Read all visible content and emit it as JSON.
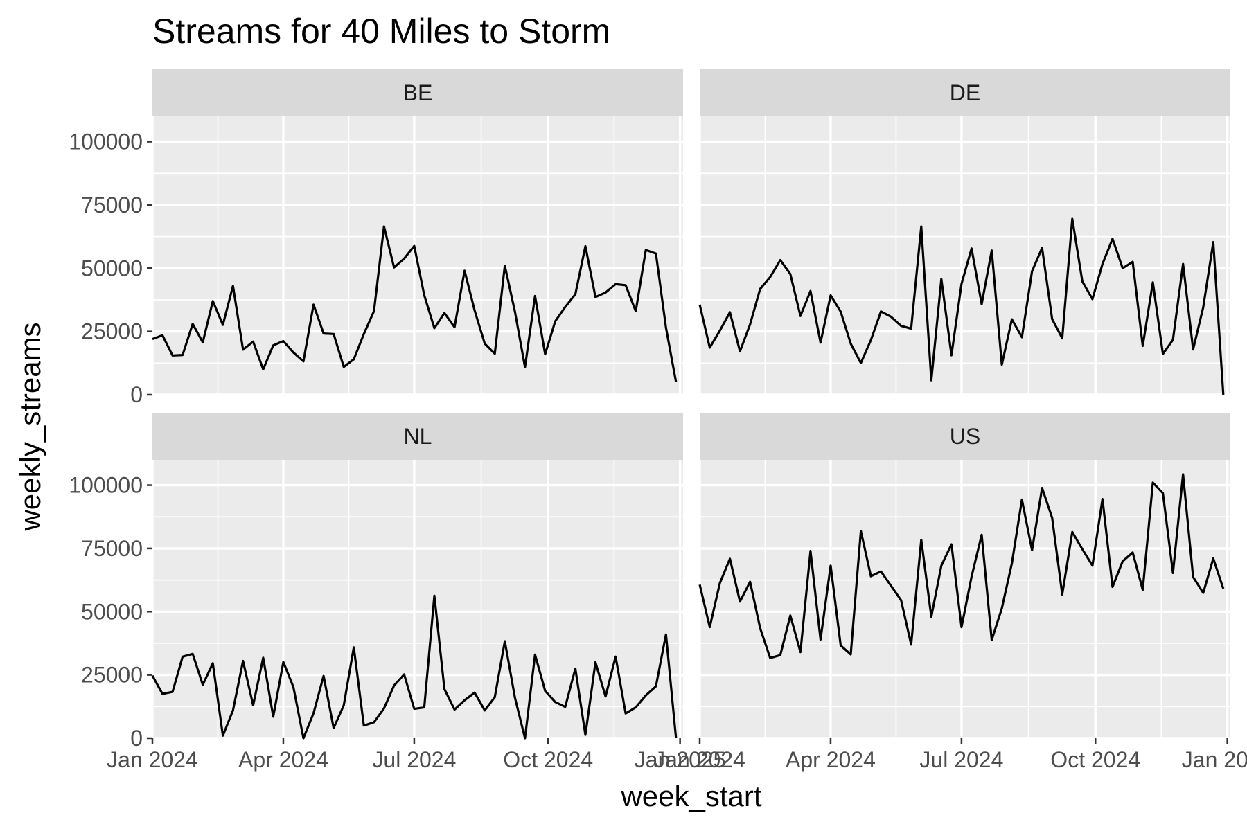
{
  "chart_data": {
    "type": "line",
    "title": "Streams for 40 Miles to Storm",
    "xlabel": "week_start",
    "ylabel": "weekly_streams",
    "ylim": [
      0,
      110000
    ],
    "xlim": [
      0,
      52.7
    ],
    "x_unit": "weeks since 2024-01-01",
    "y_ticks": [
      0,
      25000,
      50000,
      75000,
      100000
    ],
    "y_tick_labels": [
      "0",
      "25000",
      "50000",
      "75000",
      "100000"
    ],
    "x_ticks": [
      0,
      13,
      26,
      39.3,
      52.4
    ],
    "x_tick_labels": [
      "Jan 2024",
      "Apr 2024",
      "Jul 2024",
      "Oct 2024",
      "Jan 2025"
    ],
    "facets": [
      "BE",
      "DE",
      "NL",
      "US"
    ],
    "series": [
      {
        "name": "BE",
        "values": [
          22000,
          23500,
          15500,
          15700,
          28000,
          20700,
          37000,
          27600,
          43000,
          17800,
          21000,
          10000,
          19500,
          21200,
          16700,
          13200,
          35600,
          24200,
          24000,
          11000,
          14000,
          24000,
          33000,
          66500,
          50300,
          53800,
          58800,
          39300,
          26300,
          32300,
          26700,
          49000,
          33300,
          20200,
          16200,
          51000,
          32800,
          10900,
          39000,
          16000,
          29000,
          34700,
          39700,
          58700,
          38600,
          40400,
          43700,
          43300,
          33000,
          57200,
          55800,
          26500,
          5000
        ]
      },
      {
        "name": "DE",
        "values": [
          35600,
          18600,
          25300,
          32600,
          17100,
          27800,
          41800,
          46500,
          53200,
          47700,
          31100,
          41000,
          20600,
          39300,
          32800,
          20200,
          12500,
          21600,
          32900,
          30800,
          27200,
          26100,
          66500,
          5700,
          45700,
          15600,
          43800,
          57800,
          35800,
          57000,
          11900,
          29800,
          22700,
          48800,
          58000,
          29900,
          22300,
          69500,
          44800,
          37800,
          51700,
          61600,
          50000,
          52500,
          19300,
          44400,
          16100,
          21700,
          51700,
          17900,
          34500,
          60300,
          0
        ]
      },
      {
        "name": "NL",
        "values": [
          24700,
          17500,
          18300,
          32200,
          33300,
          21100,
          29600,
          1000,
          11000,
          30500,
          13000,
          31800,
          8500,
          30100,
          20200,
          0,
          9900,
          24600,
          4000,
          13000,
          35900,
          5000,
          6300,
          11800,
          20800,
          25200,
          11600,
          12200,
          56300,
          19400,
          11300,
          15000,
          18000,
          11000,
          16200,
          38300,
          16000,
          0,
          33000,
          18700,
          14300,
          12400,
          27500,
          1300,
          30000,
          16500,
          32200,
          9800,
          12200,
          16900,
          20500,
          41000,
          0
        ]
      },
      {
        "name": "US",
        "values": [
          60700,
          43900,
          61300,
          70900,
          54000,
          61800,
          43500,
          31700,
          32800,
          48500,
          34000,
          74000,
          39000,
          68200,
          36600,
          33100,
          81900,
          64000,
          65900,
          60200,
          54500,
          37000,
          78400,
          48000,
          68200,
          76600,
          43900,
          63800,
          80400,
          38800,
          51300,
          69100,
          94300,
          74300,
          98900,
          87100,
          56800,
          81500,
          74700,
          68200,
          94500,
          59800,
          69900,
          73400,
          58600,
          101000,
          96800,
          65300,
          104300,
          63700,
          57400,
          71000,
          59100
        ]
      }
    ]
  }
}
